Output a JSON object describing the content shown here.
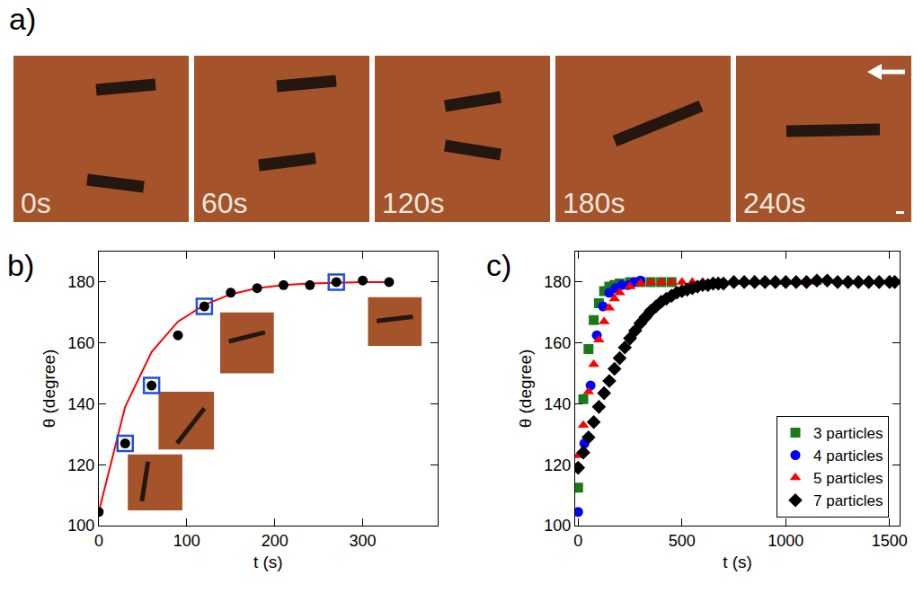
{
  "panel_a": {
    "label": "a)",
    "frames": [
      "0s",
      "60s",
      "120s",
      "180s",
      "240s"
    ]
  },
  "chart_data": [
    {
      "type": "scatter",
      "panel": "b)",
      "x_label": "t (s)",
      "y_label": "θ (degree)",
      "xlim": [
        0,
        385
      ],
      "xticks": [
        0,
        100,
        200,
        300
      ],
      "ylim": [
        100,
        190
      ],
      "yticks": [
        100,
        120,
        140,
        160,
        180
      ],
      "grid": false,
      "series": [
        {
          "type": "line",
          "color": "#ff0000",
          "line_style": "solid",
          "x": [
            0,
            30,
            60,
            90,
            120,
            150,
            180,
            210,
            240,
            270,
            300,
            330
          ],
          "values": [
            104.5,
            139,
            157,
            167,
            172.5,
            176,
            178,
            179,
            179.5,
            179.8,
            180,
            180
          ]
        },
        {
          "type": "scatter",
          "color": "#000000",
          "marker": "circle",
          "x": [
            0,
            30,
            60,
            90,
            120,
            150,
            180,
            210,
            240,
            270,
            300,
            330
          ],
          "values": [
            104.5,
            127,
            146,
            162.5,
            172,
            176.5,
            178,
            179,
            179,
            180,
            180.5,
            180
          ]
        },
        {
          "type": "scatter",
          "color": "#1f4fe0",
          "marker": "open-square",
          "x": [
            30,
            60,
            120,
            270
          ],
          "values": [
            127,
            146,
            172,
            180
          ]
        }
      ]
    },
    {
      "type": "scatter",
      "panel": "c)",
      "x_label": "t (s)",
      "y_label": "θ (degree)",
      "xlim": [
        -15,
        1550
      ],
      "xticks": [
        0,
        500,
        1000,
        1500
      ],
      "ylim": [
        100,
        190
      ],
      "yticks": [
        100,
        120,
        140,
        160,
        180
      ],
      "grid": false,
      "legend": "lower right",
      "series": [
        {
          "name": "3 particles",
          "color": "#1a7a1a",
          "marker": "square",
          "x": [
            0,
            25,
            50,
            75,
            100,
            125,
            150,
            175,
            200,
            250,
            300,
            350,
            400,
            450
          ],
          "values": [
            112.5,
            141.5,
            158,
            167.5,
            173,
            177,
            178.5,
            179,
            179.5,
            180,
            180,
            180,
            180,
            180
          ]
        },
        {
          "name": "4 particles",
          "color": "#0000ff",
          "marker": "circle",
          "x": [
            0,
            30,
            60,
            90,
            120,
            150,
            180,
            210,
            240,
            270,
            300
          ],
          "values": [
            104.5,
            127,
            146,
            162.5,
            172,
            176.5,
            178,
            179,
            179,
            180,
            180.5
          ]
        },
        {
          "name": "5 particles",
          "color": "#ff0000",
          "marker": "triangle",
          "x": [
            0,
            25,
            50,
            75,
            100,
            125,
            150,
            175,
            200,
            250,
            300,
            350,
            400,
            450,
            500,
            550,
            600,
            650,
            700,
            750,
            800,
            850,
            900,
            950,
            1000,
            1050,
            1100,
            1150
          ],
          "values": [
            123,
            133,
            144,
            153,
            161,
            167,
            171.5,
            174.5,
            176.5,
            178.5,
            179.5,
            180,
            180,
            180,
            180,
            180,
            180,
            180,
            180,
            180,
            180,
            180,
            180,
            180,
            180,
            180,
            180,
            180
          ]
        },
        {
          "name": "7 particles",
          "color": "#000000",
          "marker": "diamond",
          "x": [
            0,
            25,
            50,
            75,
            100,
            125,
            150,
            175,
            200,
            225,
            250,
            275,
            300,
            325,
            350,
            375,
            400,
            425,
            450,
            475,
            500,
            525,
            550,
            575,
            600,
            625,
            650,
            675,
            700,
            750,
            800,
            850,
            900,
            950,
            1000,
            1050,
            1100,
            1150,
            1200,
            1250,
            1300,
            1350,
            1400,
            1450,
            1500,
            1525
          ],
          "values": [
            119,
            124,
            129,
            134,
            139,
            143.5,
            147.5,
            151.5,
            155,
            158.5,
            161.5,
            164,
            166.5,
            168.5,
            170.5,
            172,
            173.5,
            174.5,
            175.5,
            176.5,
            177,
            177.5,
            178,
            178.5,
            179,
            179,
            179.5,
            179.5,
            179.5,
            180,
            180,
            180,
            180,
            180,
            180,
            180,
            180,
            180.5,
            180.5,
            180,
            180,
            180,
            180,
            180,
            180,
            180
          ]
        }
      ]
    }
  ]
}
